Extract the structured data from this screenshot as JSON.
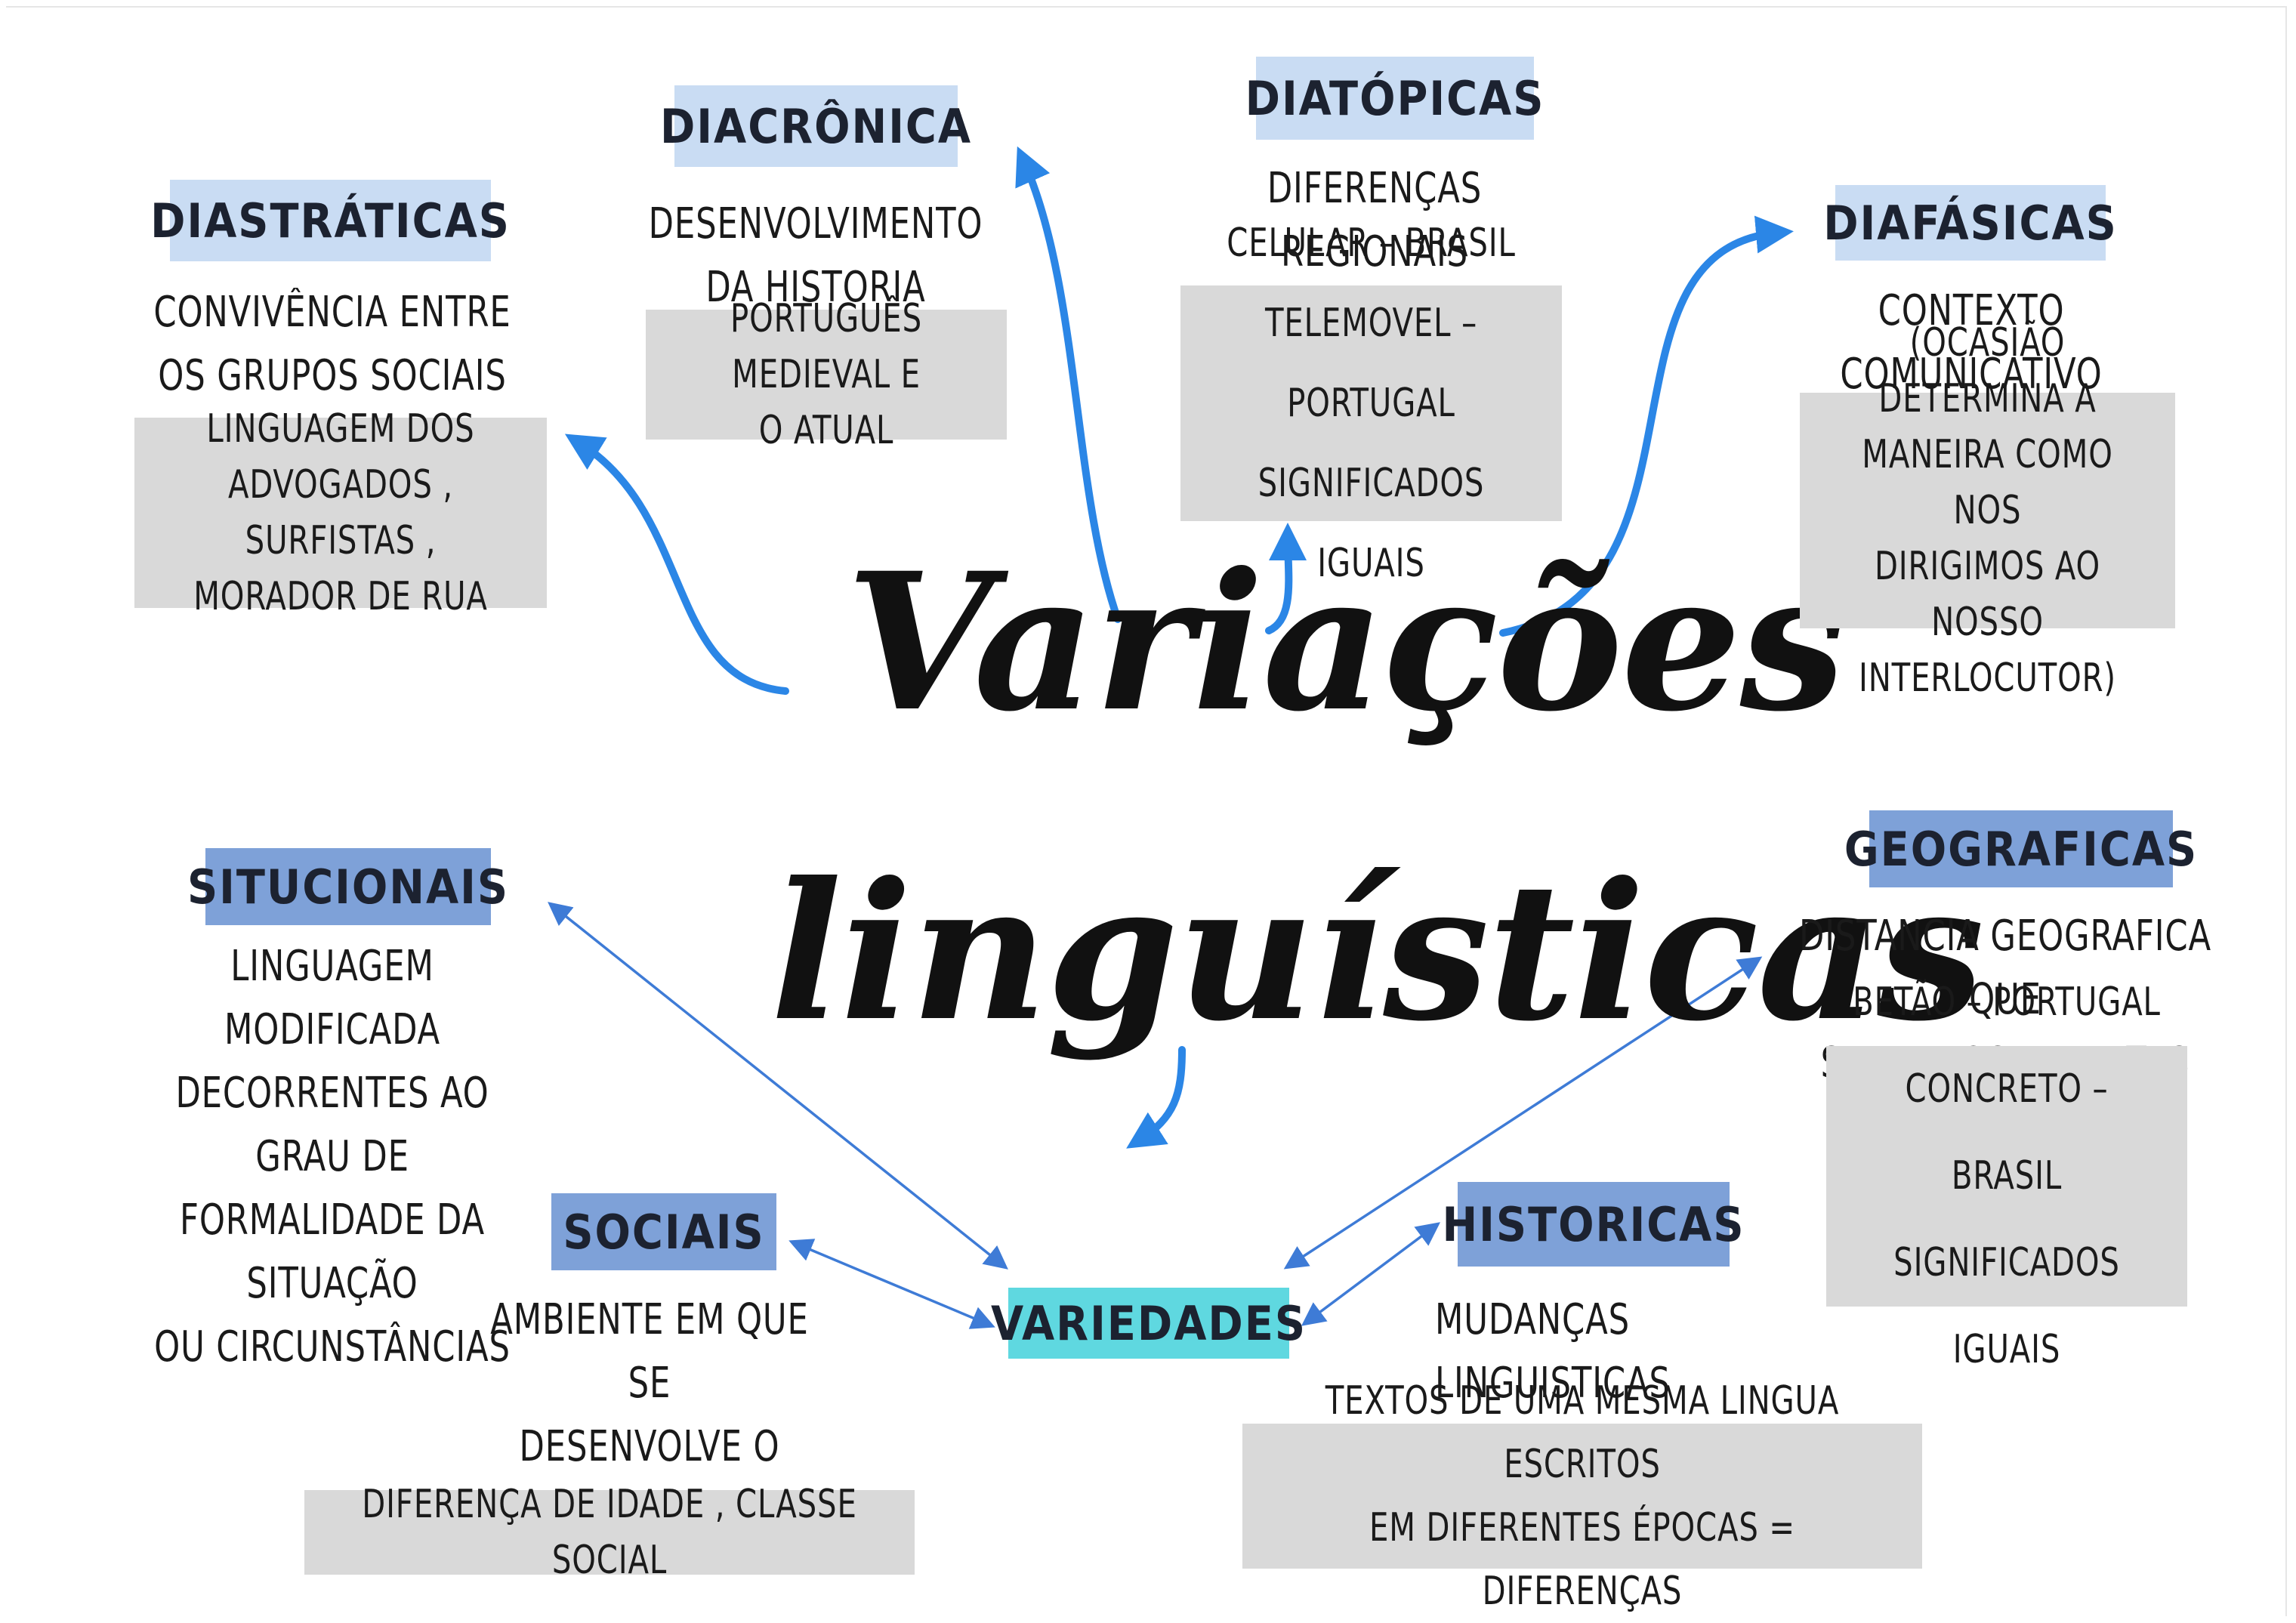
{
  "title": {
    "line1": "Variações",
    "line2": "linguísticas"
  },
  "diastraticas": {
    "header": "DIASTRÁTICAS",
    "text": "CONVIVÊNCIA ENTRE\nOS GRUPOS SOCIAIS",
    "example": "LINGUAGEM DOS\nADVOGADOS , SURFISTAS ,\nMORADOR DE RUA"
  },
  "diacronica": {
    "header": "DIACRÔNICA",
    "text": "DESENVOLVIMENTO\nDA HISTORIA",
    "example": "PORTUGUÊS MEDIEVAL E\nO ATUAL"
  },
  "diatopicas": {
    "header": "DIATÓPICAS",
    "text": "DIFERENÇAS\nREGIONAIS",
    "example": "CELULAR – BRASIL\nTELEMOVEL – PORTUGAL\nSIGNIFICADOS IGUAIS"
  },
  "diafasicas": {
    "header": "DIAFÁSICAS",
    "text": "CONTEXTO COMUNICATIVO",
    "example": "(OCASIÃO DETERMINA A\nMANEIRA COMO NOS\nDIRIGIMOS AO NOSSO\nINTERLOCUTOR)"
  },
  "situcionais": {
    "header": "SITUCIONAIS",
    "text": "LINGUAGEM MODIFICADA\nDECORRENTES AO GRAU DE\nFORMALIDADE DA SITUAÇÃO\nOU CIRCUNSTÂNCIAS"
  },
  "geograficas": {
    "header": "GEOGRAFICAS",
    "text": "DISTANCIA GEOGRAFICA QUE\nSEPARA OS FALANTES",
    "example": "BETÃO – PORTUGAL\nCONCRETO – BRASIL\nSIGNIFICADOS IGUAIS"
  },
  "sociais": {
    "header": "SOCIAIS",
    "text": "AMBIENTE EM QUE SE\nDESENVOLVE O\nFALANTE",
    "example": "DIFERENÇA DE IDADE , CLASSE SOCIAL"
  },
  "historicas": {
    "header": "HISTORICAS",
    "text": "MUDANÇAS\nLINGUISTICAS",
    "example": "TEXTOS DE UMA MESMA LINGUA ESCRITOS\nEM DIFERENTES ÉPOCAS = DIFERENÇAS"
  },
  "variedades": {
    "header": "VARIEDADES"
  },
  "colors": {
    "light_header": "#c9dcf3",
    "mid_header": "#7ea1d8",
    "variedades_header": "#5fd8e0",
    "example_box": "#d9d9d9",
    "curved_arrow": "#2b86e6",
    "thin_arrow": "#3e7bd6"
  }
}
